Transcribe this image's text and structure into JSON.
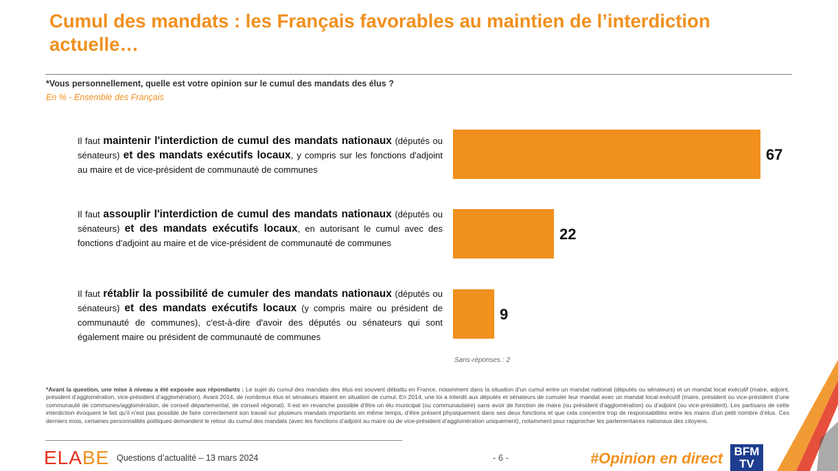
{
  "title": "Cumul des mandats : les Français favorables au maintien de l’interdiction actuelle…",
  "question": "*Vous personnellement, quelle est votre opinion sur le cumul des mandats des élus ?",
  "base": "En % - Ensemble des Français",
  "options": [
    {
      "pre": "Il faut ",
      "bold1": "maintenir l'interdiction de cumul des mandats nationaux",
      "mid": " (députés ou sénateurs) ",
      "bold2": "et des mandats exécutifs locaux",
      "post": ", y compris sur les fonctions d'adjoint au maire et de vice-président de communauté de communes"
    },
    {
      "pre": "Il faut ",
      "bold1": "assouplir l'interdiction de cumul des mandats nationaux",
      "mid": " (députés ou sénateurs) ",
      "bold2": "et des mandats exécutifs locaux",
      "post": ", en autorisant le cumul avec des fonctions d'adjoint au maire et de vice-président de communauté de communes"
    },
    {
      "pre": "Il faut ",
      "bold1": "rétablir la possibilité de cumuler des mandats nationaux",
      "mid": " (députés ou sénateurs) ",
      "bold2": "et des mandats exécutifs locaux",
      "post": " (y compris maire ou président de communauté de communes), c'est-à-dire d'avoir des députés ou sénateurs qui sont également maire ou président de communauté de communes"
    }
  ],
  "chart_data": {
    "type": "bar",
    "orientation": "horizontal",
    "categories": [
      "Maintenir l'interdiction",
      "Assouplir l'interdiction",
      "Rétablir la possibilité de cumuler"
    ],
    "values": [
      67,
      22,
      9
    ],
    "unit": "%",
    "color": "#f0901e",
    "xlim": [
      0,
      100
    ]
  },
  "sans_reponses": "Sans-réponses : 2",
  "note": {
    "bold": "*Avant la question, une mise à niveau a été exposée aux répondants :",
    "text": " Le sujet du cumul des mandats des élus est souvent débattu en France, notamment dans la situation d’un cumul entre un mandat national (députés ou sénateurs) et un mandat local exécutif (maire, adjoint, président d’agglomération, vice-président d’agglomération). Avant 2014, de nombreux élus et sénateurs étaient en situation de cumul. En 2014, une loi a interdit aux députés et sénateurs de cumuler leur mandat avec un mandat local exécutif (maire, président ou vice-président d’une communauté de communes/agglomération, de conseil départemental, de conseil régional). Il est en revanche possible d’être un élu municipal (ou communautaire) sans avoir de fonction de maire (ou président d’agglomération) ou d’adjoint (ou vice-président). Les partisans de cette interdiction évoquent le fait qu’il n’est pas possible de faire correctement son travail sur plusieurs mandats importants en même temps, d’être présent physiquement dans ses deux fonctions et que cela concentre trop de responsabilités entre les mains d’un petit nombre d’élus. Ces derniers mois, certaines personnalités politiques demandent le retour du cumul des mandats (avec les fonctions d’adjoint au maire ou de vice-président d’agglomération uniquement), notamment pour rapprocher les parlementaires nationaux des citoyens."
  },
  "footer": {
    "logo_a": "ELA",
    "logo_b": "BE",
    "text": "Questions d’actualité – 13 mars 2024",
    "page": "- 6 -",
    "hashtag": "#Opinion en direct",
    "bfm_line1": "BFM",
    "bfm_line2": "TV"
  }
}
